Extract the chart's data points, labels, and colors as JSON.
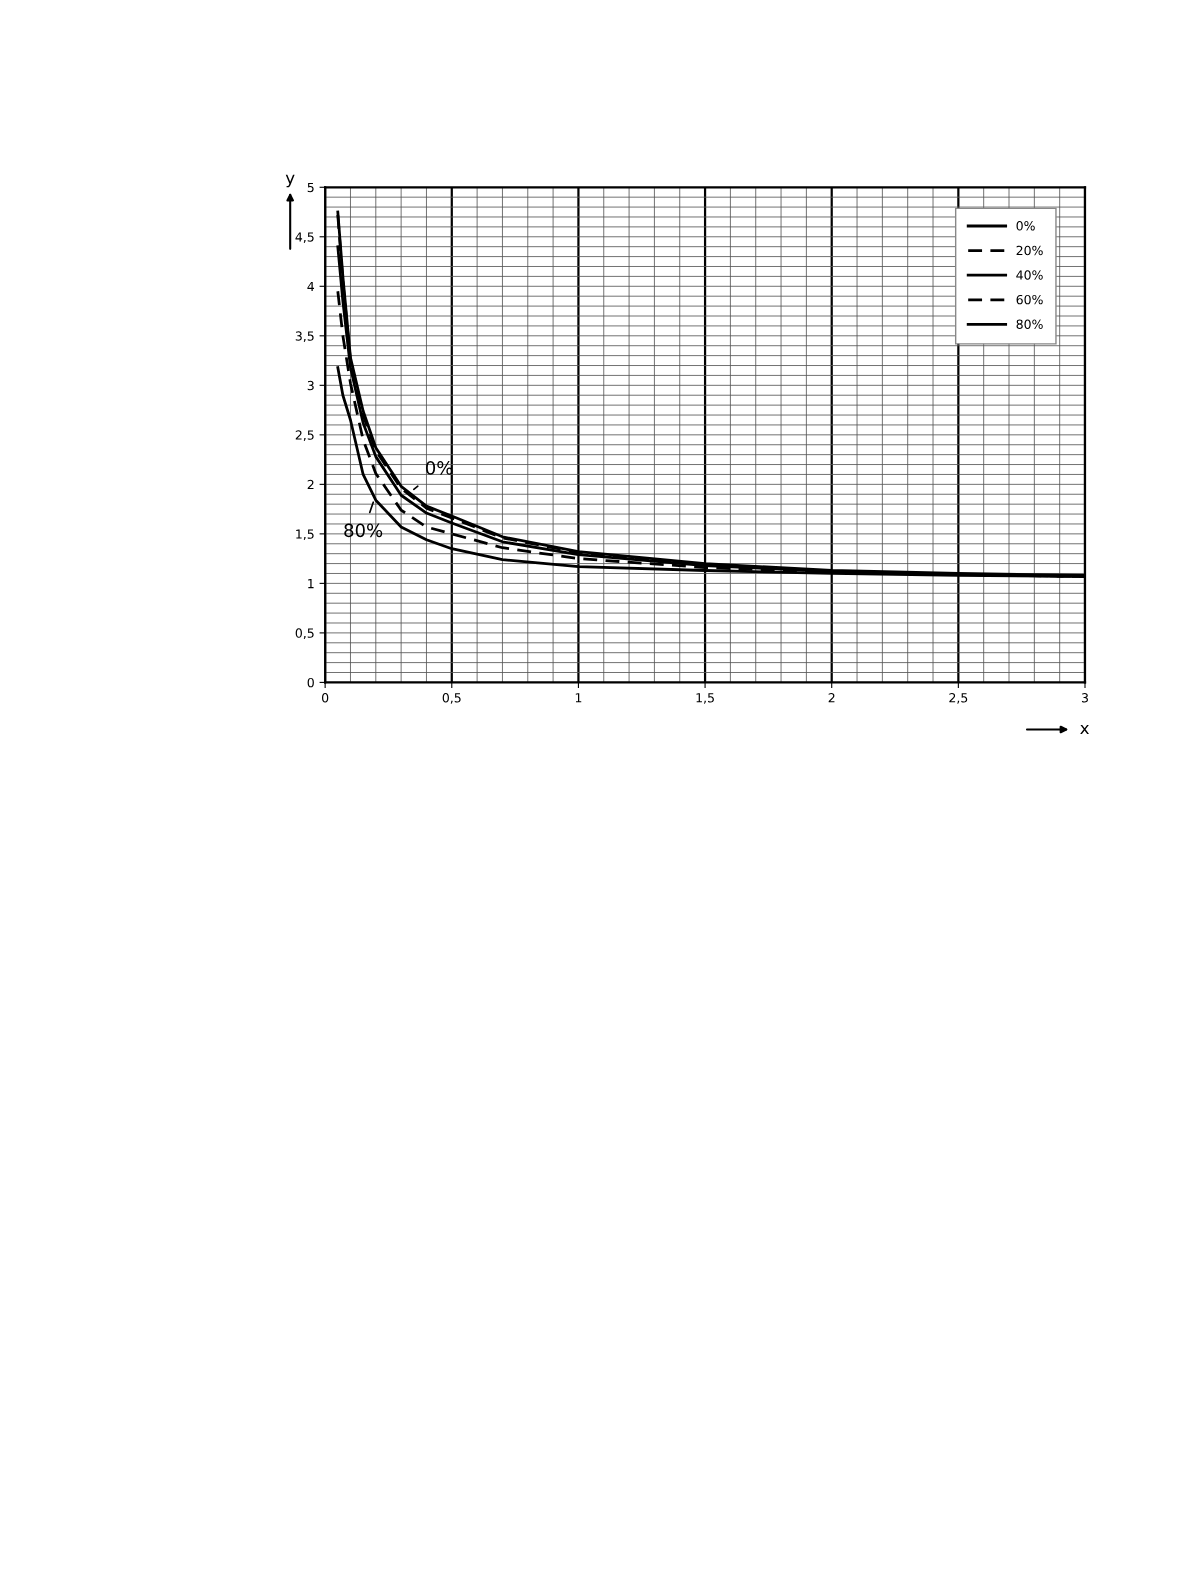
{
  "chart_data": {
    "type": "line",
    "xlabel": "x",
    "ylabel": "y",
    "x": [
      0.05,
      0.07,
      0.1,
      0.15,
      0.2,
      0.3,
      0.4,
      0.5,
      0.7,
      1,
      1.5,
      2,
      2.5,
      3
    ],
    "series": [
      {
        "name": "0%",
        "color": "#000000",
        "line_style": "solid",
        "values": [
          4.75,
          4.1,
          3.28,
          2.74,
          2.37,
          1.98,
          1.78,
          1.68,
          1.47,
          1.32,
          1.2,
          1.13,
          1.1,
          1.08
        ]
      },
      {
        "name": "20%",
        "color": "#000000",
        "line_style": "dashed",
        "values": [
          4.72,
          4.05,
          3.25,
          2.7,
          2.34,
          1.96,
          1.76,
          1.66,
          1.46,
          1.31,
          1.19,
          1.12,
          1.09,
          1.07
        ]
      },
      {
        "name": "40%",
        "color": "#000000",
        "line_style": "solid",
        "values": [
          4.4,
          3.85,
          3.18,
          2.62,
          2.28,
          1.89,
          1.71,
          1.61,
          1.42,
          1.29,
          1.18,
          1.12,
          1.09,
          1.07
        ]
      },
      {
        "name": "60%",
        "color": "#000000",
        "line_style": "dashed",
        "values": [
          3.95,
          3.5,
          3.02,
          2.45,
          2.11,
          1.74,
          1.57,
          1.5,
          1.36,
          1.25,
          1.16,
          1.11,
          1.09,
          1.07
        ]
      },
      {
        "name": "80%",
        "color": "#000000",
        "line_style": "solid",
        "values": [
          3.18,
          2.9,
          2.65,
          2.1,
          1.84,
          1.57,
          1.44,
          1.35,
          1.24,
          1.17,
          1.13,
          1.1,
          1.08,
          1.07
        ]
      }
    ],
    "xlim": [
      0,
      3
    ],
    "ylim": [
      0,
      5
    ],
    "xticks": [
      0,
      {
        "value": 0.5,
        "label": "0,5"
      },
      1,
      {
        "value": 1.5,
        "label": "1,5"
      },
      2,
      {
        "value": 2.5,
        "label": "2,5"
      },
      3
    ],
    "yticks": [
      0,
      {
        "value": 0.5,
        "label": "0,5"
      },
      1,
      {
        "value": 1.5,
        "label": "1,5"
      },
      2,
      {
        "value": 2.5,
        "label": "2,5"
      },
      3,
      {
        "value": 3.5,
        "label": "3,5"
      },
      4,
      {
        "value": 4.5,
        "label": "4,5"
      },
      5
    ],
    "annotations": [
      {
        "text": "0%",
        "x": 0.35,
        "y": 1.95
      },
      {
        "text": "80%",
        "x": 0.19,
        "y": 1.82
      }
    ],
    "grid": true,
    "legend": "top right",
    "marker": "none"
  }
}
